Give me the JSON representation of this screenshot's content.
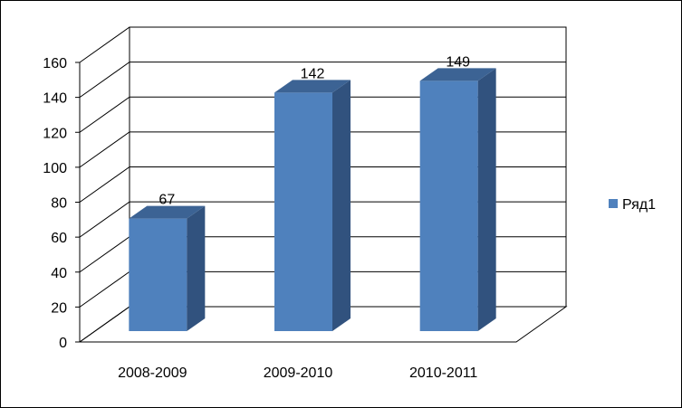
{
  "chart_data": {
    "type": "bar",
    "title": "",
    "xlabel": "",
    "ylabel": "",
    "categories": [
      "2008-2009",
      "2009-2010",
      "2010-2011"
    ],
    "series": [
      {
        "name": "Ряд1",
        "values": [
          67,
          142,
          149
        ]
      }
    ],
    "data_labels": [
      "67",
      "142",
      "149"
    ],
    "ylim": [
      0,
      160
    ],
    "yticks": [
      0,
      20,
      40,
      60,
      80,
      100,
      120,
      140,
      160
    ],
    "ytick_labels": [
      "0",
      "20",
      "40",
      "60",
      "80",
      "100",
      "120",
      "140",
      "160"
    ],
    "grid": true,
    "legend_position": "right",
    "style": "3d-column",
    "colors": {
      "bar_front": "#4f81bd",
      "bar_side": "#31527e",
      "bar_top": "#3c6394",
      "axis": "#000000",
      "border": "#000000"
    }
  }
}
